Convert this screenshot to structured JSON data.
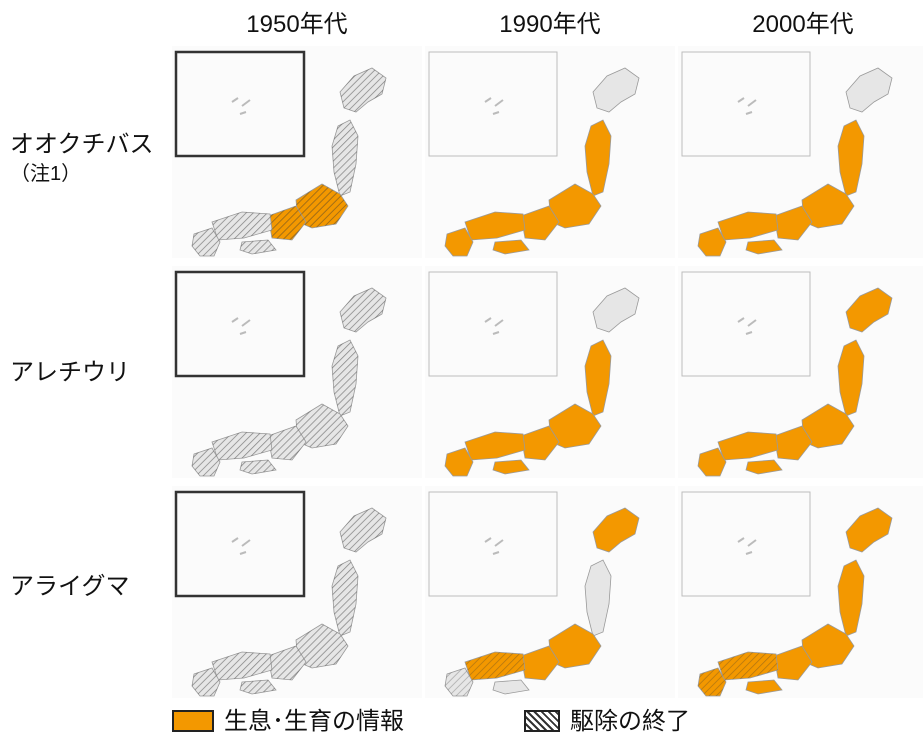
{
  "columns": [
    "1950年代",
    "1990年代",
    "2000年代"
  ],
  "rows": [
    {
      "label": "オオクチバス",
      "note": "（注1）",
      "panels": [
        {
          "habitat": "sparse",
          "eradicated": true
        },
        {
          "habitat": "honshu-kyushu",
          "eradicated": false
        },
        {
          "habitat": "honshu-kyushu",
          "eradicated": false
        }
      ]
    },
    {
      "label": "アレチウリ",
      "note": "",
      "panels": [
        {
          "habitat": "none",
          "eradicated": true
        },
        {
          "habitat": "honshu-kyushu",
          "eradicated": false
        },
        {
          "habitat": "full",
          "eradicated": false
        }
      ]
    },
    {
      "label": "アライグマ",
      "note": "",
      "panels": [
        {
          "habitat": "none",
          "eradicated": true
        },
        {
          "habitat": "hokkaido-west",
          "eradicated": true
        },
        {
          "habitat": "full",
          "eradicated": true
        }
      ]
    }
  ],
  "legend": {
    "habitat_label": "生息･生育の情報",
    "eradication_label": "駆除の終了"
  },
  "colors": {
    "habitat": "#f39800",
    "land": "#e6e6e6",
    "border": "#333333"
  }
}
